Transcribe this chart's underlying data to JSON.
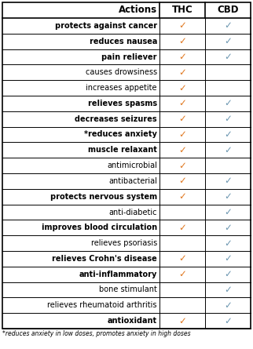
{
  "actions": [
    "protects against cancer",
    "reduces nausea",
    "pain reliever",
    "causes drowsiness",
    "increases appetite",
    "relieves spasms",
    "decreases seizures",
    "*reduces anxiety",
    "muscle relaxant",
    "antimicrobial",
    "antibacterial",
    "protects nervous system",
    "anti-diabetic",
    "improves blood circulation",
    "relieves psoriasis",
    "relieves Crohn's disease",
    "anti-inflammatory",
    "bone stimulant",
    "relieves rheumatoid arthritis",
    "antioxidant"
  ],
  "thc": [
    1,
    1,
    1,
    1,
    1,
    1,
    1,
    1,
    1,
    1,
    1,
    1,
    0,
    1,
    0,
    1,
    1,
    0,
    0,
    1
  ],
  "cbd": [
    1,
    1,
    1,
    0,
    0,
    1,
    1,
    1,
    1,
    0,
    1,
    1,
    1,
    1,
    1,
    1,
    1,
    1,
    1,
    1
  ],
  "thc_color": "#E07820",
  "cbd_color": "#6B96B0",
  "bold_rows": [
    0,
    1,
    2,
    5,
    6,
    7,
    8,
    11,
    13,
    15,
    16,
    19
  ],
  "footnote": "*reduces anxiety in low doses, promotes anxiety in high doses",
  "header_fontsize": 8.5,
  "row_fontsize": 7.0,
  "check_fontsize": 8.5,
  "footnote_fontsize": 5.5
}
